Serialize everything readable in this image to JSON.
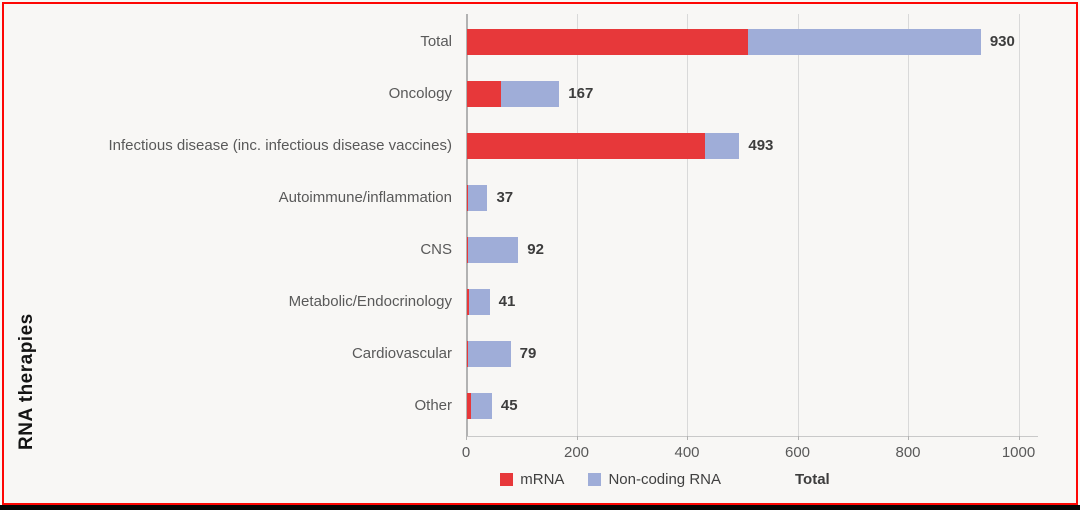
{
  "chart_data": {
    "type": "bar",
    "orientation": "horizontal",
    "ylabel": "RNA therapies",
    "categories": [
      "Total",
      "Oncology",
      "Infectious disease (inc. infectious disease vaccines)",
      "Autoimmune/inflammation",
      "CNS",
      "Metabolic/Endocrinology",
      "Cardiovascular",
      "Other"
    ],
    "totals": [
      930,
      167,
      493,
      37,
      92,
      41,
      79,
      45
    ],
    "series": [
      {
        "name": "mRNA",
        "color": "#e7383a",
        "values": [
          509,
          62,
          430,
          2,
          1,
          4,
          2,
          8
        ]
      },
      {
        "name": "Non-coding RNA",
        "color": "#9fadd8",
        "values": [
          421,
          105,
          63,
          35,
          91,
          37,
          77,
          37
        ]
      }
    ],
    "xlim": [
      0,
      1000
    ],
    "xticks": [
      0,
      200,
      400,
      600,
      800,
      1000
    ],
    "grid": "vertical",
    "legend_position": "bottom",
    "data_labels": "total at bar end"
  },
  "legend": {
    "items": [
      {
        "label": "mRNA",
        "color": "#e7383a",
        "bold": false
      },
      {
        "label": "Non-coding RNA",
        "color": "#9fadd8",
        "bold": false
      },
      {
        "label": "Total",
        "color": "",
        "bold": true
      }
    ]
  },
  "frame": {
    "border_color": "#fd0603",
    "bottom_strip_color": "#050505",
    "background": "#f8f7f5"
  }
}
